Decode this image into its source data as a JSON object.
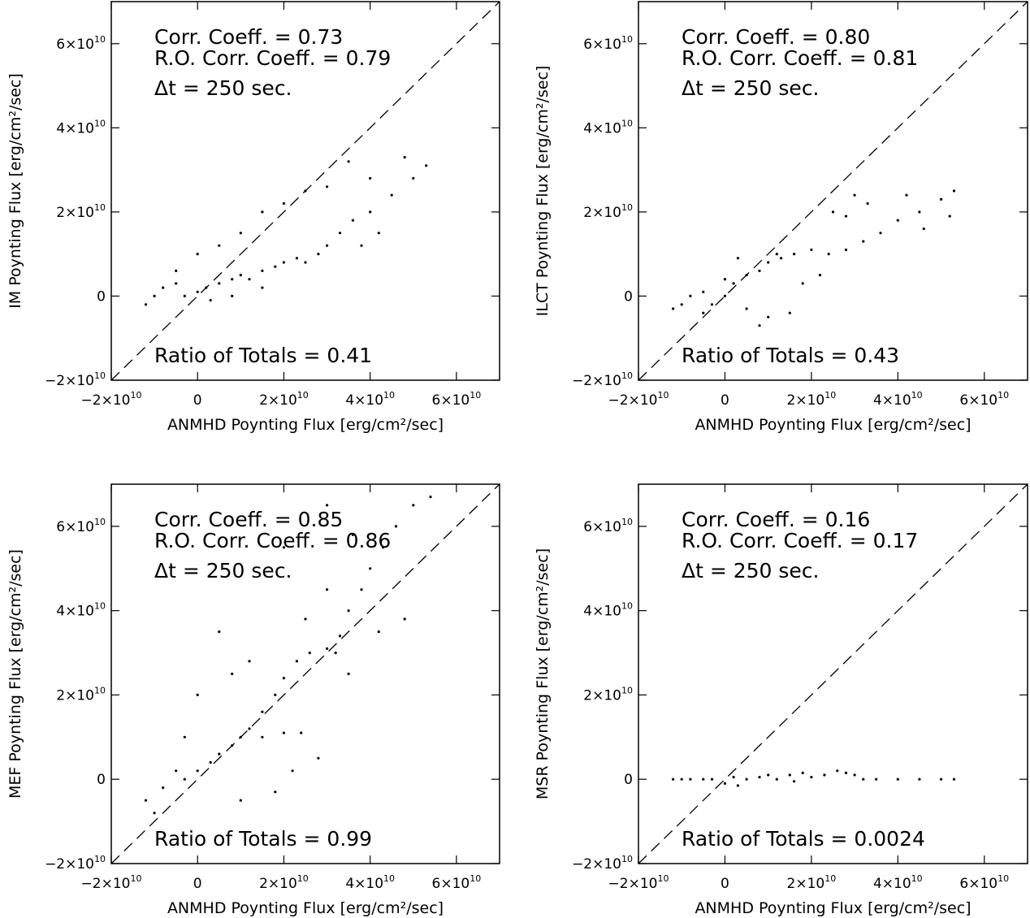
{
  "chart_data": [
    {
      "type": "scatter",
      "xlabel": "ANMHD Poynting Flux [erg/cm²/sec]",
      "ylabel": "IM Poynting Flux [erg/cm²/sec]",
      "xlim": [
        -20000000000.0,
        70000000000.0
      ],
      "ylim": [
        -20000000000.0,
        70000000000.0
      ],
      "xticks": [
        -20000000000.0,
        0,
        20000000000.0,
        40000000000.0,
        60000000000.0
      ],
      "yticks": [
        -20000000000.0,
        0,
        20000000000.0,
        40000000000.0,
        60000000000.0
      ],
      "annotations": {
        "corr": "Corr. Coeff. = 0.73",
        "ro_corr": "R.O. Corr. Coeff. = 0.79",
        "dt": "Δt =  250 sec.",
        "ratio": "Ratio of Totals = 0.41"
      },
      "reference_line": "y = x (dashed)",
      "points": [
        [
          -12000000000.0,
          -2000000000.0
        ],
        [
          -10000000000.0,
          0
        ],
        [
          -8000000000.0,
          2000000000.0
        ],
        [
          -5000000000.0,
          3000000000.0
        ],
        [
          -3000000000.0,
          0
        ],
        [
          0,
          1000000000.0
        ],
        [
          2000000000.0,
          2000000000.0
        ],
        [
          5000000000.0,
          3000000000.0
        ],
        [
          8000000000.0,
          4000000000.0
        ],
        [
          10000000000.0,
          5000000000.0
        ],
        [
          12000000000.0,
          4000000000.0
        ],
        [
          15000000000.0,
          6000000000.0
        ],
        [
          18000000000.0,
          7000000000.0
        ],
        [
          20000000000.0,
          8000000000.0
        ],
        [
          23000000000.0,
          9000000000.0
        ],
        [
          25000000000.0,
          8000000000.0
        ],
        [
          28000000000.0,
          10000000000.0
        ],
        [
          30000000000.0,
          12000000000.0
        ],
        [
          33000000000.0,
          15000000000.0
        ],
        [
          36000000000.0,
          18000000000.0
        ],
        [
          40000000000.0,
          20000000000.0
        ],
        [
          45000000000.0,
          24000000000.0
        ],
        [
          50000000000.0,
          28000000000.0
        ],
        [
          53000000000.0,
          31000000000.0
        ],
        [
          25000000000.0,
          25000000000.0
        ],
        [
          30000000000.0,
          26000000000.0
        ],
        [
          10000000000.0,
          15000000000.0
        ],
        [
          5000000000.0,
          12000000000.0
        ],
        [
          0,
          10000000000.0
        ],
        [
          -5000000000.0,
          6000000000.0
        ],
        [
          15000000000.0,
          20000000000.0
        ],
        [
          20000000000.0,
          22000000000.0
        ],
        [
          35000000000.0,
          32000000000.0
        ],
        [
          40000000000.0,
          28000000000.0
        ],
        [
          48000000000.0,
          33000000000.0
        ],
        [
          38000000000.0,
          12000000000.0
        ],
        [
          42000000000.0,
          15000000000.0
        ],
        [
          15000000000.0,
          2000000000.0
        ],
        [
          8000000000.0,
          0
        ],
        [
          3000000000.0,
          -1000000000.0
        ]
      ]
    },
    {
      "type": "scatter",
      "xlabel": "ANMHD Poynting Flux [erg/cm²/sec]",
      "ylabel": "ILCT Poynting Flux [erg/cm²/sec]",
      "xlim": [
        -20000000000.0,
        70000000000.0
      ],
      "ylim": [
        -20000000000.0,
        70000000000.0
      ],
      "xticks": [
        -20000000000.0,
        0,
        20000000000.0,
        40000000000.0,
        60000000000.0
      ],
      "yticks": [
        -20000000000.0,
        0,
        20000000000.0,
        40000000000.0,
        60000000000.0
      ],
      "annotations": {
        "corr": "Corr. Coeff. = 0.80",
        "ro_corr": "R.O. Corr. Coeff. = 0.81",
        "dt": "Δt =  250 sec.",
        "ratio": "Ratio of Totals = 0.43"
      },
      "reference_line": "y = x (dashed)",
      "points": [
        [
          -12000000000.0,
          -3000000000.0
        ],
        [
          -10000000000.0,
          -2000000000.0
        ],
        [
          -8000000000.0,
          0
        ],
        [
          -5000000000.0,
          1000000000.0
        ],
        [
          -3000000000.0,
          -2000000000.0
        ],
        [
          0,
          0
        ],
        [
          2000000000.0,
          3000000000.0
        ],
        [
          5000000000.0,
          5000000000.0
        ],
        [
          8000000000.0,
          6000000000.0
        ],
        [
          10000000000.0,
          8000000000.0
        ],
        [
          13000000000.0,
          9000000000.0
        ],
        [
          16000000000.0,
          10000000000.0
        ],
        [
          20000000000.0,
          11000000000.0
        ],
        [
          24000000000.0,
          10000000000.0
        ],
        [
          28000000000.0,
          11000000000.0
        ],
        [
          32000000000.0,
          13000000000.0
        ],
        [
          36000000000.0,
          15000000000.0
        ],
        [
          40000000000.0,
          18000000000.0
        ],
        [
          45000000000.0,
          20000000000.0
        ],
        [
          50000000000.0,
          23000000000.0
        ],
        [
          53000000000.0,
          25000000000.0
        ],
        [
          52000000000.0,
          19000000000.0
        ],
        [
          46000000000.0,
          16000000000.0
        ],
        [
          30000000000.0,
          24000000000.0
        ],
        [
          25000000000.0,
          20000000000.0
        ],
        [
          10000000000.0,
          -5000000000.0
        ],
        [
          15000000000.0,
          -4000000000.0
        ],
        [
          8000000000.0,
          -7000000000.0
        ],
        [
          5000000000.0,
          -3000000000.0
        ],
        [
          22000000000.0,
          5000000000.0
        ],
        [
          18000000000.0,
          3000000000.0
        ],
        [
          0,
          4000000000.0
        ],
        [
          -5000000000.0,
          -4000000000.0
        ],
        [
          28000000000.0,
          19000000000.0
        ],
        [
          33000000000.0,
          22000000000.0
        ],
        [
          42000000000.0,
          24000000000.0
        ],
        [
          12000000000.0,
          10000000000.0
        ],
        [
          3000000000.0,
          9000000000.0
        ]
      ]
    },
    {
      "type": "scatter",
      "xlabel": "ANMHD Poynting Flux [erg/cm²/sec]",
      "ylabel": "MEF Poynting Flux [erg/cm²/sec]",
      "xlim": [
        -20000000000.0,
        70000000000.0
      ],
      "ylim": [
        -20000000000.0,
        70000000000.0
      ],
      "xticks": [
        -20000000000.0,
        0,
        20000000000.0,
        40000000000.0,
        60000000000.0
      ],
      "yticks": [
        -20000000000.0,
        0,
        20000000000.0,
        40000000000.0,
        60000000000.0
      ],
      "annotations": {
        "corr": "Corr. Coeff. = 0.85",
        "ro_corr": "R.O. Corr. Coeff. = 0.86",
        "dt": "Δt =  250 sec.",
        "ratio": "Ratio of Totals = 0.99"
      },
      "reference_line": "y = x (dashed)",
      "points": [
        [
          -12000000000.0,
          -5000000000.0
        ],
        [
          -10000000000.0,
          -8000000000.0
        ],
        [
          -8000000000.0,
          -2000000000.0
        ],
        [
          -5000000000.0,
          2000000000.0
        ],
        [
          -3000000000.0,
          0
        ],
        [
          0,
          2000000000.0
        ],
        [
          3000000000.0,
          4000000000.0
        ],
        [
          5000000000.0,
          6000000000.0
        ],
        [
          8000000000.0,
          8000000000.0
        ],
        [
          10000000000.0,
          10000000000.0
        ],
        [
          12000000000.0,
          12000000000.0
        ],
        [
          15000000000.0,
          16000000000.0
        ],
        [
          18000000000.0,
          20000000000.0
        ],
        [
          20000000000.0,
          24000000000.0
        ],
        [
          23000000000.0,
          28000000000.0
        ],
        [
          26000000000.0,
          30000000000.0
        ],
        [
          30000000000.0,
          31000000000.0
        ],
        [
          32000000000.0,
          30000000000.0
        ],
        [
          33000000000.0,
          34000000000.0
        ],
        [
          35000000000.0,
          40000000000.0
        ],
        [
          38000000000.0,
          45000000000.0
        ],
        [
          40000000000.0,
          50000000000.0
        ],
        [
          43000000000.0,
          55000000000.0
        ],
        [
          46000000000.0,
          60000000000.0
        ],
        [
          50000000000.0,
          65000000000.0
        ],
        [
          54000000000.0,
          67000000000.0
        ],
        [
          36000000000.0,
          58000000000.0
        ],
        [
          30000000000.0,
          45000000000.0
        ],
        [
          25000000000.0,
          38000000000.0
        ],
        [
          15000000000.0,
          10000000000.0
        ],
        [
          20000000000.0,
          11000000000.0
        ],
        [
          24000000000.0,
          11000000000.0
        ],
        [
          12000000000.0,
          28000000000.0
        ],
        [
          8000000000.0,
          25000000000.0
        ],
        [
          5000000000.0,
          35000000000.0
        ],
        [
          0,
          20000000000.0
        ],
        [
          -3000000000.0,
          10000000000.0
        ],
        [
          28000000000.0,
          5000000000.0
        ],
        [
          22000000000.0,
          2000000000.0
        ],
        [
          35000000000.0,
          25000000000.0
        ],
        [
          42000000000.0,
          35000000000.0
        ],
        [
          48000000000.0,
          38000000000.0
        ],
        [
          18000000000.0,
          -3000000000.0
        ],
        [
          10000000000.0,
          -5000000000.0
        ],
        [
          30000000000.0,
          65000000000.0
        ],
        [
          20000000000.0,
          55000000000.0
        ]
      ]
    },
    {
      "type": "scatter",
      "xlabel": "ANMHD Poynting Flux [erg/cm²/sec]",
      "ylabel": "MSR Poynting Flux [erg/cm²/sec]",
      "xlim": [
        -20000000000.0,
        70000000000.0
      ],
      "ylim": [
        -20000000000.0,
        70000000000.0
      ],
      "xticks": [
        -20000000000.0,
        0,
        20000000000.0,
        40000000000.0,
        60000000000.0
      ],
      "yticks": [
        -20000000000.0,
        0,
        20000000000.0,
        40000000000.0,
        60000000000.0
      ],
      "annotations": {
        "corr": "Corr. Coeff. = 0.16",
        "ro_corr": "R.O. Corr. Coeff. = 0.17",
        "dt": "Δt =  250 sec.",
        "ratio": "Ratio of Totals = 0.0024"
      },
      "reference_line": "y = x (dashed)",
      "points": [
        [
          -12000000000.0,
          0
        ],
        [
          -10000000000.0,
          0
        ],
        [
          -8000000000.0,
          0
        ],
        [
          -5000000000.0,
          0
        ],
        [
          -3000000000.0,
          0
        ],
        [
          0,
          -1000000000.0
        ],
        [
          2000000000.0,
          500000000.0
        ],
        [
          5000000000.0,
          0
        ],
        [
          8000000000.0,
          500000000.0
        ],
        [
          10000000000.0,
          1000000000.0
        ],
        [
          12000000000.0,
          0
        ],
        [
          15000000000.0,
          1000000000.0
        ],
        [
          18000000000.0,
          1500000000.0
        ],
        [
          20000000000.0,
          500000000.0
        ],
        [
          23000000000.0,
          1000000000.0
        ],
        [
          26000000000.0,
          2000000000.0
        ],
        [
          28000000000.0,
          1500000000.0
        ],
        [
          30000000000.0,
          1000000000.0
        ],
        [
          32000000000.0,
          0
        ],
        [
          35000000000.0,
          0
        ],
        [
          40000000000.0,
          0
        ],
        [
          45000000000.0,
          0
        ],
        [
          50000000000.0,
          0
        ],
        [
          53000000000.0,
          0
        ],
        [
          16000000000.0,
          -500000000.0
        ],
        [
          3000000000.0,
          -1500000000.0
        ]
      ]
    }
  ]
}
